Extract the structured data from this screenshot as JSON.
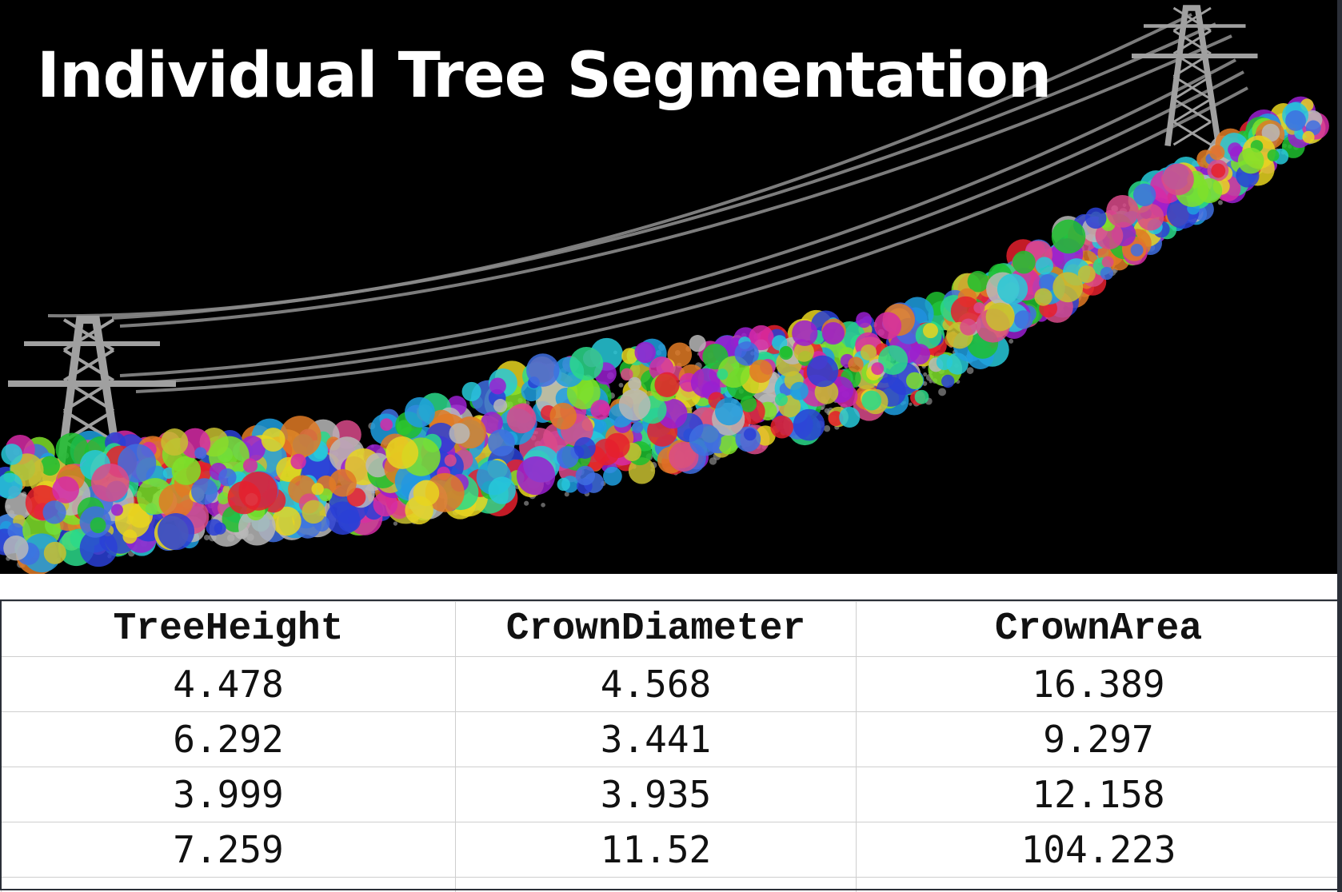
{
  "title": "Individual Tree Segmentation",
  "viewport": {
    "background": "#000000",
    "segment_palette": [
      "#e5202d",
      "#1fbf2f",
      "#2a3fd6",
      "#e8d520",
      "#d62aa6",
      "#27c9d9",
      "#3f6fe0",
      "#b8b8b8",
      "#e07a24",
      "#7fe02a",
      "#9a1fd0",
      "#1e9fe0",
      "#d94a8a",
      "#c8c030",
      "#2ad98a"
    ],
    "ground_color": "#8c8c8c",
    "tower_color": "#a0a0a0",
    "wire_color": "#8a8a8a"
  },
  "table": {
    "columns": [
      "TreeHeight",
      "CrownDiameter",
      "CrownArea"
    ],
    "rows": [
      [
        "4.478",
        "4.568",
        "16.389"
      ],
      [
        "6.292",
        "3.441",
        "9.297"
      ],
      [
        "3.999",
        "3.935",
        "12.158"
      ],
      [
        "7.259",
        "11.52",
        "104.223"
      ]
    ]
  }
}
